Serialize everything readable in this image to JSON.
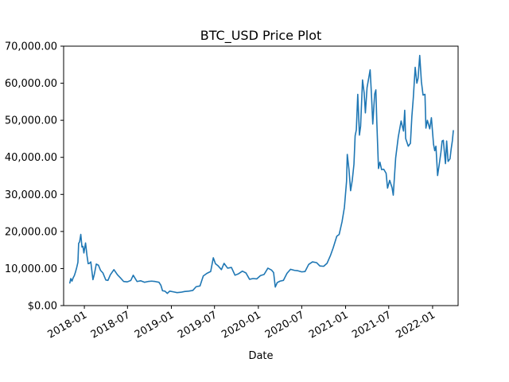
{
  "chart_data": {
    "type": "line",
    "title": "BTC_USD Price Plot",
    "xlabel": "Date",
    "ylabel": "",
    "x_axis_type": "date",
    "xlim": [
      "2017-10-06",
      "2022-04-18"
    ],
    "ylim": [
      0,
      70000
    ],
    "x_ticks": [
      {
        "date": "2018-01-01",
        "label": "2018-01"
      },
      {
        "date": "2018-07-01",
        "label": "2018-07"
      },
      {
        "date": "2019-01-01",
        "label": "2019-01"
      },
      {
        "date": "2019-07-01",
        "label": "2019-07"
      },
      {
        "date": "2020-01-01",
        "label": "2020-01"
      },
      {
        "date": "2020-07-01",
        "label": "2020-07"
      },
      {
        "date": "2021-01-01",
        "label": "2021-01"
      },
      {
        "date": "2021-07-01",
        "label": "2021-07"
      },
      {
        "date": "2022-01-01",
        "label": "2022-01"
      }
    ],
    "y_ticks": [
      {
        "value": 0,
        "label": "$0.00"
      },
      {
        "value": 10000,
        "label": "10,000.00"
      },
      {
        "value": 20000,
        "label": "20,000.00"
      },
      {
        "value": 30000,
        "label": "30,000.00"
      },
      {
        "value": 40000,
        "label": "40,000.00"
      },
      {
        "value": 50000,
        "label": "50,000.00"
      },
      {
        "value": 60000,
        "label": "60,000.00"
      },
      {
        "value": 70000,
        "label": "70,000.00"
      }
    ],
    "grid": false,
    "legend": "none",
    "line_color": "#1f77b4",
    "series": [
      {
        "x": [
          "2017-11-01",
          "2017-11-05",
          "2017-11-10",
          "2017-11-15",
          "2017-11-20",
          "2017-11-25",
          "2017-11-30",
          "2017-12-05",
          "2017-12-08",
          "2017-12-12",
          "2017-12-17",
          "2017-12-22",
          "2017-12-26",
          "2017-12-30",
          "2018-01-06",
          "2018-01-12",
          "2018-01-17",
          "2018-01-22",
          "2018-01-28",
          "2018-02-06",
          "2018-02-12",
          "2018-02-20",
          "2018-03-01",
          "2018-03-10",
          "2018-03-20",
          "2018-04-01",
          "2018-04-10",
          "2018-04-20",
          "2018-05-05",
          "2018-05-20",
          "2018-06-01",
          "2018-06-15",
          "2018-06-30",
          "2018-07-15",
          "2018-07-25",
          "2018-08-10",
          "2018-08-25",
          "2018-09-10",
          "2018-09-25",
          "2018-10-10",
          "2018-10-25",
          "2018-11-10",
          "2018-11-18",
          "2018-11-25",
          "2018-12-05",
          "2018-12-15",
          "2018-12-25",
          "2019-01-10",
          "2019-01-25",
          "2019-02-10",
          "2019-02-25",
          "2019-03-15",
          "2019-04-01",
          "2019-04-15",
          "2019-05-01",
          "2019-05-15",
          "2019-05-30",
          "2019-06-15",
          "2019-06-26",
          "2019-07-05",
          "2019-07-15",
          "2019-07-30",
          "2019-08-10",
          "2019-08-25",
          "2019-09-10",
          "2019-09-25",
          "2019-10-10",
          "2019-10-26",
          "2019-11-10",
          "2019-11-25",
          "2019-12-10",
          "2019-12-25",
          "2020-01-10",
          "2020-01-25",
          "2020-02-10",
          "2020-02-25",
          "2020-03-05",
          "2020-03-12",
          "2020-03-20",
          "2020-04-01",
          "2020-04-15",
          "2020-04-30",
          "2020-05-15",
          "2020-06-01",
          "2020-06-15",
          "2020-07-01",
          "2020-07-15",
          "2020-07-30",
          "2020-08-15",
          "2020-09-01",
          "2020-09-15",
          "2020-10-01",
          "2020-10-15",
          "2020-10-30",
          "2020-11-10",
          "2020-11-25",
          "2020-12-05",
          "2020-12-17",
          "2020-12-27",
          "2021-01-05",
          "2021-01-08",
          "2021-01-15",
          "2021-01-22",
          "2021-01-29",
          "2021-02-05",
          "2021-02-10",
          "2021-02-15",
          "2021-02-21",
          "2021-02-28",
          "2021-03-05",
          "2021-03-13",
          "2021-03-20",
          "2021-03-25",
          "2021-04-01",
          "2021-04-14",
          "2021-04-20",
          "2021-04-25",
          "2021-05-03",
          "2021-05-08",
          "2021-05-12",
          "2021-05-19",
          "2021-05-25",
          "2021-06-01",
          "2021-06-10",
          "2021-06-20",
          "2021-06-26",
          "2021-07-05",
          "2021-07-15",
          "2021-07-20",
          "2021-07-30",
          "2021-08-10",
          "2021-08-22",
          "2021-09-01",
          "2021-09-06",
          "2021-09-10",
          "2021-09-21",
          "2021-09-30",
          "2021-10-06",
          "2021-10-12",
          "2021-10-20",
          "2021-10-27",
          "2021-11-01",
          "2021-11-08",
          "2021-11-15",
          "2021-11-22",
          "2021-11-30",
          "2021-12-04",
          "2021-12-10",
          "2021-12-20",
          "2021-12-27",
          "2022-01-05",
          "2022-01-10",
          "2022-01-15",
          "2022-01-22",
          "2022-01-28",
          "2022-02-05",
          "2022-02-10",
          "2022-02-15",
          "2022-02-24",
          "2022-03-01",
          "2022-03-07",
          "2022-03-15",
          "2022-03-20",
          "2022-03-25",
          "2022-03-29"
        ],
        "y": [
          6100,
          7300,
          6600,
          7500,
          8100,
          9100,
          10300,
          11700,
          16800,
          17200,
          19200,
          15800,
          16000,
          14200,
          16900,
          13500,
          11300,
          11400,
          11800,
          7000,
          8500,
          11200,
          10900,
          9500,
          8800,
          6900,
          6800,
          8300,
          9700,
          8300,
          7500,
          6500,
          6400,
          6800,
          8200,
          6500,
          6700,
          6300,
          6500,
          6600,
          6500,
          6300,
          5500,
          4000,
          3900,
          3300,
          3900,
          3700,
          3500,
          3600,
          3800,
          3900,
          4100,
          5100,
          5300,
          8000,
          8700,
          9200,
          12900,
          11300,
          10800,
          9700,
          11400,
          10100,
          10300,
          8200,
          8600,
          9300,
          8800,
          7100,
          7300,
          7200,
          8100,
          8400,
          10100,
          9600,
          8900,
          5000,
          6200,
          6600,
          6800,
          8700,
          9800,
          9500,
          9400,
          9100,
          9200,
          11100,
          11800,
          11600,
          10700,
          10600,
          11400,
          13600,
          15600,
          18700,
          19200,
          22600,
          26500,
          33500,
          40800,
          36800,
          31000,
          33800,
          38100,
          45800,
          47400,
          57000,
          46000,
          48400,
          60900,
          57300,
          52000,
          58800,
          63600,
          56300,
          49000,
          57100,
          58200,
          49500,
          37000,
          38700,
          36700,
          36800,
          35700,
          31700,
          33800,
          31800,
          29800,
          39800,
          45500,
          49800,
          47100,
          52700,
          45100,
          43000,
          43800,
          51000,
          56000,
          64300,
          60000,
          61300,
          67500,
          60400,
          56800,
          57000,
          47900,
          50000,
          47700,
          50700,
          43500,
          41800,
          43000,
          35100,
          37700,
          41400,
          44400,
          44600,
          38300,
          44400,
          38900,
          39600,
          42300,
          44500,
          47200
        ]
      }
    ]
  }
}
